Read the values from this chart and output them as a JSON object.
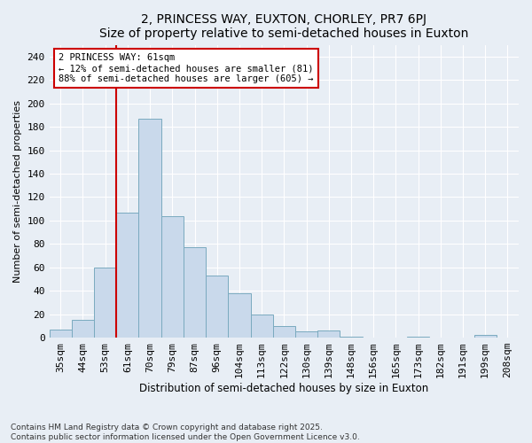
{
  "title": "2, PRINCESS WAY, EUXTON, CHORLEY, PR7 6PJ",
  "subtitle": "Size of property relative to semi-detached houses in Euxton",
  "xlabel": "Distribution of semi-detached houses by size in Euxton",
  "ylabel": "Number of semi-detached properties",
  "categories": [
    "35sqm",
    "44sqm",
    "53sqm",
    "61sqm",
    "70sqm",
    "79sqm",
    "87sqm",
    "96sqm",
    "104sqm",
    "113sqm",
    "122sqm",
    "130sqm",
    "139sqm",
    "148sqm",
    "156sqm",
    "165sqm",
    "173sqm",
    "182sqm",
    "191sqm",
    "199sqm",
    "208sqm"
  ],
  "values": [
    7,
    15,
    60,
    107,
    187,
    104,
    77,
    53,
    38,
    20,
    10,
    5,
    6,
    1,
    0,
    0,
    1,
    0,
    0,
    2,
    0
  ],
  "bar_color": "#c9d9eb",
  "bar_edge_color": "#7aaabf",
  "vline_x_index": 3,
  "vline_color": "#cc0000",
  "annotation_text": "2 PRINCESS WAY: 61sqm\n← 12% of semi-detached houses are smaller (81)\n88% of semi-detached houses are larger (605) →",
  "annotation_box_color": "white",
  "annotation_box_edge_color": "#cc0000",
  "ylim": [
    0,
    250
  ],
  "yticks": [
    0,
    20,
    40,
    60,
    80,
    100,
    120,
    140,
    160,
    180,
    200,
    220,
    240
  ],
  "title_fontsize": 10,
  "axis_label_fontsize": 8,
  "tick_fontsize": 8,
  "footer_text": "Contains HM Land Registry data © Crown copyright and database right 2025.\nContains public sector information licensed under the Open Government Licence v3.0.",
  "background_color": "#e8eef5",
  "plot_background_color": "#e8eef5",
  "grid_color": "#ffffff"
}
